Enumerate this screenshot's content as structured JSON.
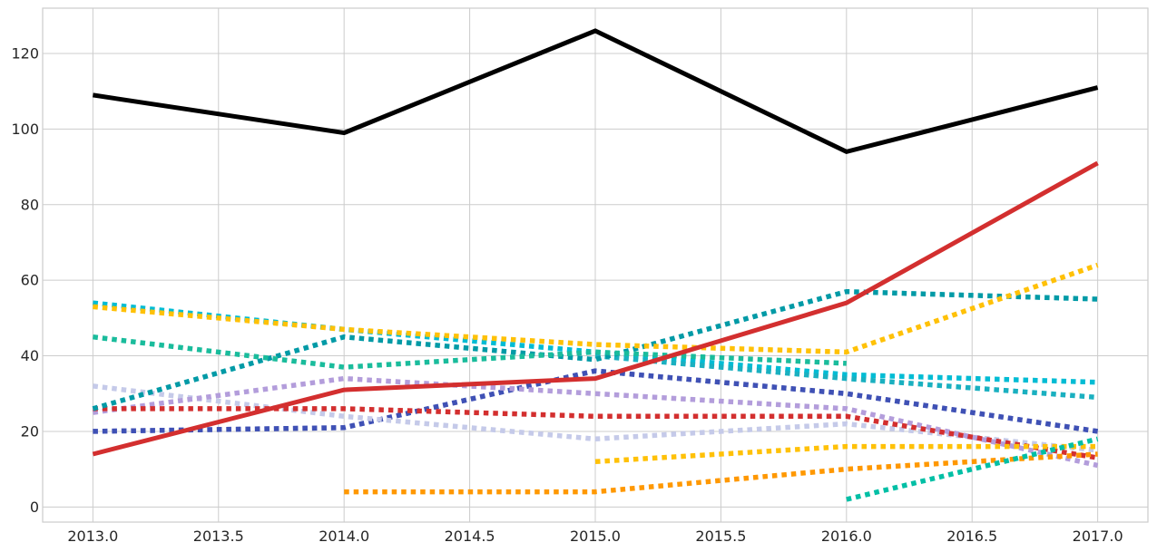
{
  "chart_data": {
    "type": "line",
    "title": "",
    "xlabel": "",
    "ylabel": "",
    "xlim": [
      2012.8,
      2017.2
    ],
    "ylim": [
      -4,
      132
    ],
    "grid": true,
    "legend": "none",
    "x_ticks": [
      2013.0,
      2013.5,
      2014.0,
      2014.5,
      2015.0,
      2015.5,
      2016.0,
      2016.5,
      2017.0
    ],
    "x_tick_labels": [
      "2013.0",
      "2013.5",
      "2014.0",
      "2014.5",
      "2015.0",
      "2015.5",
      "2016.0",
      "2016.5",
      "2017.0"
    ],
    "y_ticks": [
      0,
      20,
      40,
      60,
      80,
      100,
      120
    ],
    "y_tick_labels": [
      "0",
      "20",
      "40",
      "60",
      "80",
      "100",
      "120"
    ],
    "series": [
      {
        "color": "#8b8fd0",
        "style": "dotted",
        "points": [
          [
            2013,
            20
          ],
          [
            2014,
            21
          ],
          [
            2015,
            36
          ],
          [
            2016,
            30
          ],
          [
            2017,
            20
          ]
        ]
      },
      {
        "color": "#3f51b5",
        "style": "dotted",
        "points": [
          [
            2013,
            20
          ],
          [
            2014,
            21
          ],
          [
            2015,
            36
          ],
          [
            2016,
            30
          ],
          [
            2017,
            20
          ]
        ]
      },
      {
        "color": "#c5cae9",
        "style": "dotted",
        "points": [
          [
            2013,
            32
          ],
          [
            2014,
            24
          ],
          [
            2015,
            18
          ],
          [
            2016,
            22
          ],
          [
            2017,
            15
          ]
        ]
      },
      {
        "color": "#b39ddb",
        "style": "dotted",
        "points": [
          [
            2013,
            25
          ],
          [
            2014,
            34
          ],
          [
            2015,
            30
          ],
          [
            2016,
            26
          ],
          [
            2017,
            11
          ]
        ]
      },
      {
        "color": "#d32f2f",
        "style": "dotted",
        "points": [
          [
            2013,
            26
          ],
          [
            2014,
            26
          ],
          [
            2015,
            24
          ],
          [
            2016,
            24
          ],
          [
            2017,
            13
          ]
        ]
      },
      {
        "color": "#00bcd4",
        "style": "dotted",
        "points": [
          [
            2013,
            54
          ],
          [
            2014,
            47
          ],
          [
            2015,
            41
          ],
          [
            2016,
            35
          ],
          [
            2017,
            33
          ]
        ]
      },
      {
        "color": "#1ab0c0",
        "style": "dotted",
        "points": [
          [
            2015,
            40
          ],
          [
            2016,
            34
          ],
          [
            2017,
            29
          ]
        ]
      },
      {
        "color": "#009aa6",
        "style": "dotted",
        "points": [
          [
            2013,
            26
          ],
          [
            2014,
            45
          ],
          [
            2015,
            39
          ],
          [
            2016,
            57
          ],
          [
            2017,
            55
          ]
        ]
      },
      {
        "color": "#1abc9c",
        "style": "dotted",
        "points": [
          [
            2013,
            45
          ],
          [
            2014,
            37
          ],
          [
            2015,
            41
          ],
          [
            2016,
            38
          ]
        ]
      },
      {
        "color": "#ffc107",
        "style": "dotted",
        "points": [
          [
            2013,
            53
          ],
          [
            2014,
            47
          ],
          [
            2015,
            43
          ],
          [
            2016,
            41
          ],
          [
            2017,
            64
          ]
        ]
      },
      {
        "color": "#ffc107",
        "style": "dotted",
        "points": [
          [
            2015,
            12
          ],
          [
            2016,
            16
          ],
          [
            2017,
            16
          ]
        ]
      },
      {
        "color": "#ff9800",
        "style": "dotted",
        "points": [
          [
            2014,
            4
          ],
          [
            2015,
            4
          ],
          [
            2016,
            10
          ],
          [
            2017,
            14
          ]
        ]
      },
      {
        "color": "#00bfa5",
        "style": "dotted",
        "points": [
          [
            2016,
            2
          ],
          [
            2017,
            18
          ]
        ]
      },
      {
        "color": "#d32f2f",
        "style": "solid",
        "points": [
          [
            2013,
            14
          ],
          [
            2014,
            31
          ],
          [
            2015,
            34
          ],
          [
            2016,
            54
          ],
          [
            2017,
            91
          ]
        ]
      },
      {
        "color": "#000000",
        "style": "solid",
        "points": [
          [
            2013,
            109
          ],
          [
            2014,
            99
          ],
          [
            2015,
            126
          ],
          [
            2016,
            94
          ],
          [
            2017,
            111
          ]
        ]
      }
    ]
  }
}
